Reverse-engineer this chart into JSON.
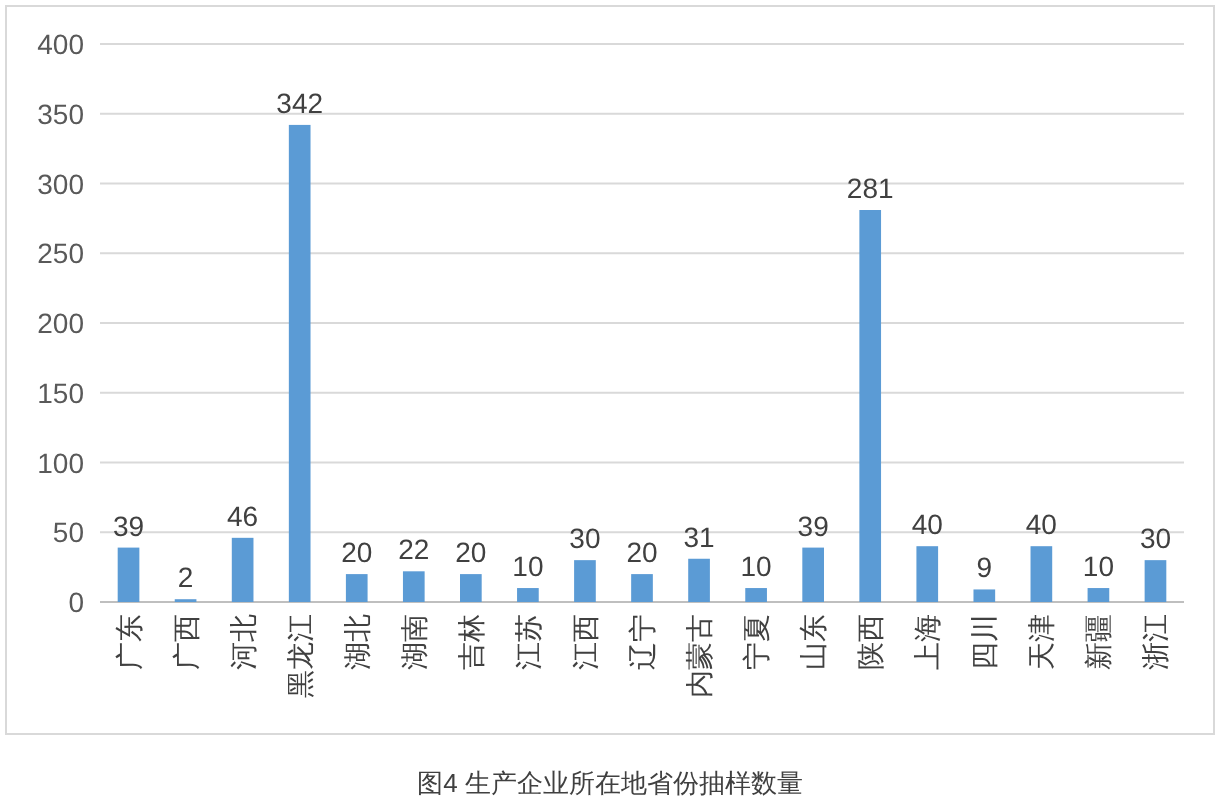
{
  "chart_data": {
    "type": "bar",
    "title": "图4 生产企业所在地省份抽样数量",
    "categories": [
      "广东",
      "广西",
      "河北",
      "黑龙江",
      "湖北",
      "湖南",
      "吉林",
      "江苏",
      "江西",
      "辽宁",
      "内蒙古",
      "宁夏",
      "山东",
      "陕西",
      "上海",
      "四川",
      "天津",
      "新疆",
      "浙江"
    ],
    "values": [
      39,
      2,
      46,
      342,
      20,
      22,
      20,
      10,
      30,
      20,
      31,
      10,
      39,
      281,
      40,
      9,
      40,
      10,
      30
    ],
    "color": "#5b9bd5",
    "ylim": [
      0,
      400
    ],
    "yticks": [
      0,
      50,
      100,
      150,
      200,
      250,
      300,
      350,
      400
    ],
    "grid": "y",
    "data_labels": true
  }
}
